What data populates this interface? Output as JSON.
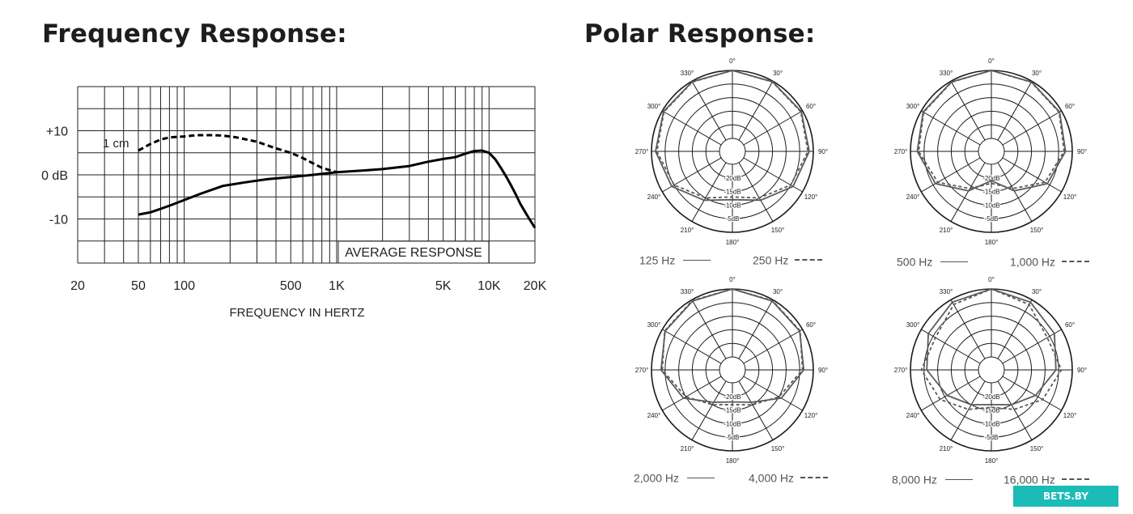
{
  "headings": {
    "frequency": "Frequency Response:",
    "polar": "Polar Response:"
  },
  "badge": "BETS.BY",
  "chart_data": [
    {
      "type": "line",
      "title": "Frequency Response:",
      "xlabel": "FREQUENCY IN HERTZ",
      "ylabel": "",
      "x_scale": "log",
      "xlim": [
        20,
        20000
      ],
      "ylim": [
        -20,
        20
      ],
      "x_tick_labels": [
        {
          "value": 20,
          "label": "20"
        },
        {
          "value": 50,
          "label": "50"
        },
        {
          "value": 100,
          "label": "100"
        },
        {
          "value": 500,
          "label": "500"
        },
        {
          "value": 1000,
          "label": "1K"
        },
        {
          "value": 5000,
          "label": "5K"
        },
        {
          "value": 10000,
          "label": "10K"
        },
        {
          "value": 20000,
          "label": "20K"
        }
      ],
      "y_tick_labels": [
        {
          "value": 10,
          "label": "+10"
        },
        {
          "value": 0,
          "label": "0 dB"
        },
        {
          "value": -10,
          "label": "-10"
        }
      ],
      "grid": true,
      "annotations": {
        "average": "AVERAGE RESPONSE",
        "proximity": "1 cm"
      },
      "series": [
        {
          "name": "",
          "style": "solid",
          "x": [
            50,
            60,
            70,
            80,
            100,
            130,
            180,
            250,
            350,
            500,
            700,
            1000,
            1500,
            2000,
            3000,
            4000,
            5000,
            6000,
            7000,
            8000,
            9000,
            10000,
            11000,
            12000,
            13000,
            14000,
            15000,
            16000,
            18000,
            20000
          ],
          "y": [
            -9,
            -8.5,
            -7.7,
            -7,
            -5.7,
            -4.2,
            -2.5,
            -1.7,
            -1,
            -0.5,
            0,
            0.6,
            1,
            1.3,
            2,
            3,
            3.6,
            4,
            4.8,
            5.4,
            5.5,
            5,
            3.5,
            1.5,
            -0.5,
            -2.5,
            -4.5,
            -6.5,
            -9.5,
            -12
          ]
        },
        {
          "name": "1 cm",
          "style": "dashed",
          "x": [
            50,
            60,
            70,
            80,
            100,
            120,
            150,
            180,
            220,
            300,
            400,
            500,
            600,
            700,
            800,
            1000
          ],
          "y": [
            5.5,
            7,
            8,
            8.5,
            8.7,
            9,
            9,
            8.9,
            8.5,
            7.5,
            6,
            5,
            3.8,
            2.6,
            1.6,
            0.6
          ]
        }
      ]
    },
    {
      "type": "polar",
      "title": "",
      "angle_labels": [
        "0°",
        "30°",
        "60°",
        "90°",
        "120°",
        "150°",
        "180°",
        "210°",
        "240°",
        "270°",
        "300°",
        "330°"
      ],
      "ring_labels": [
        "-20dB",
        "-15dB",
        "-10dB",
        "-5dB"
      ],
      "series": [
        {
          "name": "125 Hz",
          "style": "solid",
          "angles_deg": [
            0,
            30,
            60,
            90,
            120,
            150,
            180
          ],
          "db": [
            0,
            -0.2,
            -0.5,
            -1.5,
            -4,
            -9,
            -12
          ]
        },
        {
          "name": "250 Hz",
          "style": "dashed",
          "angles_deg": [
            0,
            30,
            60,
            90,
            120,
            150,
            180
          ],
          "db": [
            0,
            -0.3,
            -0.7,
            -2,
            -5,
            -10,
            -13
          ]
        }
      ]
    },
    {
      "type": "polar",
      "title": "",
      "angle_labels": [
        "0°",
        "30°",
        "60°",
        "90°",
        "120°",
        "150°",
        "180°",
        "210°",
        "240°",
        "270°",
        "300°",
        "330°"
      ],
      "ring_labels": [
        "-20dB",
        "-15dB",
        "-10dB",
        "-5dB"
      ],
      "series": [
        {
          "name": "500 Hz",
          "style": "solid",
          "angles_deg": [
            0,
            30,
            60,
            90,
            120,
            150,
            180
          ],
          "db": [
            0,
            -0.3,
            -0.8,
            -2.5,
            -6,
            -13,
            -19
          ]
        },
        {
          "name": "1,000 Hz",
          "style": "dashed",
          "angles_deg": [
            0,
            30,
            60,
            90,
            120,
            150,
            180
          ],
          "db": [
            0,
            -0.4,
            -1,
            -3,
            -7,
            -14,
            -18
          ]
        }
      ]
    },
    {
      "type": "polar",
      "title": "",
      "angle_labels": [
        "0°",
        "30°",
        "60°",
        "90°",
        "120°",
        "150°",
        "180°",
        "210°",
        "240°",
        "270°",
        "300°",
        "330°"
      ],
      "ring_labels": [
        "-20dB",
        "-15dB",
        "-10dB",
        "-5dB"
      ],
      "series": [
        {
          "name": "2,000 Hz",
          "style": "solid",
          "angles_deg": [
            0,
            30,
            60,
            90,
            120,
            150,
            180
          ],
          "db": [
            0,
            -0.5,
            -1.2,
            -3.5,
            -9,
            -16,
            -18
          ]
        },
        {
          "name": "4,000 Hz",
          "style": "dashed",
          "angles_deg": [
            0,
            30,
            60,
            90,
            120,
            150,
            180
          ],
          "db": [
            0,
            -0.3,
            -1,
            -4,
            -10,
            -15,
            -17
          ]
        }
      ]
    },
    {
      "type": "polar",
      "title": "",
      "angle_labels": [
        "0°",
        "30°",
        "60°",
        "90°",
        "120°",
        "150°",
        "180°",
        "210°",
        "240°",
        "270°",
        "300°",
        "330°"
      ],
      "ring_labels": [
        "-20dB",
        "-15dB",
        "-10dB",
        "-5dB"
      ],
      "series": [
        {
          "name": "8,000 Hz",
          "style": "solid",
          "angles_deg": [
            0,
            30,
            60,
            90,
            120,
            150,
            180
          ],
          "db": [
            0,
            -1,
            -3,
            -6,
            -11,
            -15,
            -17
          ]
        },
        {
          "name": "16,000 Hz",
          "style": "dashed",
          "angles_deg": [
            0,
            30,
            60,
            90,
            120,
            150,
            180
          ],
          "db": [
            0,
            -2,
            -6,
            -4,
            -8,
            -13,
            -16
          ]
        }
      ]
    }
  ]
}
